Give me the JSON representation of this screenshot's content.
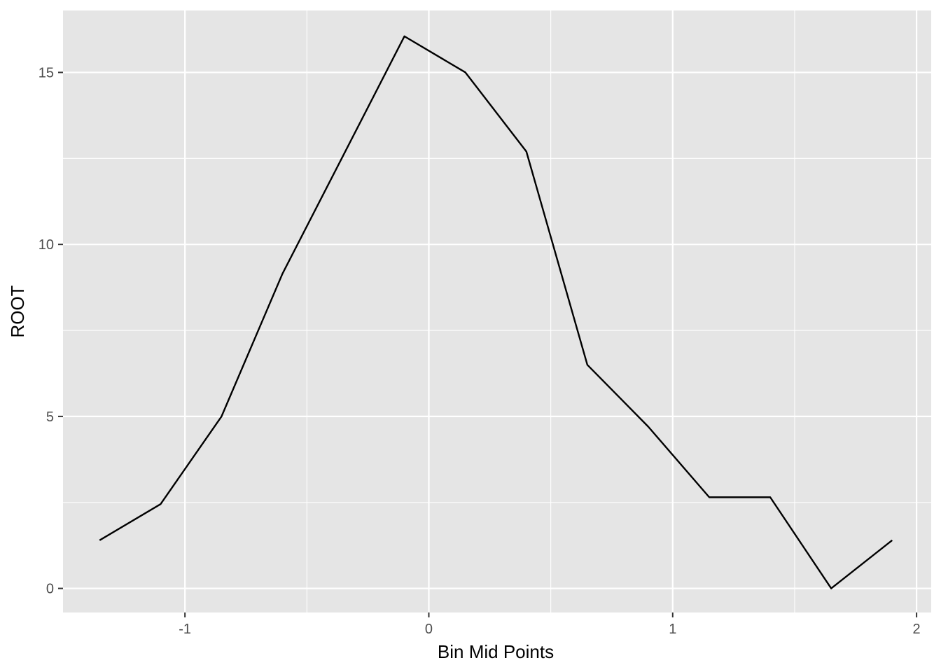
{
  "chart_data": {
    "type": "line",
    "title": "",
    "xlabel": "Bin Mid Points",
    "ylabel": "ROOT",
    "xlim": [
      -1.5,
      2.06
    ],
    "ylim": [
      -0.7,
      16.8
    ],
    "xticks": [
      -1,
      0,
      1,
      2
    ],
    "xtick_labels": [
      "-1",
      "0",
      "1",
      "2"
    ],
    "yticks": [
      0,
      5,
      10,
      15
    ],
    "ytick_labels": [
      "0",
      "5",
      "10",
      "15"
    ],
    "x_minor_gridlines": [
      -0.5,
      0.5,
      1.5
    ],
    "y_minor_gridlines": [
      2.5,
      7.5,
      12.5
    ],
    "grid": true,
    "legend": "none",
    "series": [
      {
        "x": [
          -1.35,
          -1.1,
          -0.85,
          -0.6,
          -0.35,
          -0.1,
          0.15,
          0.4,
          0.65,
          0.9,
          1.15,
          1.4,
          1.65,
          1.9
        ],
        "y": [
          1.4,
          2.45,
          5.0,
          9.15,
          12.6,
          16.05,
          15.0,
          12.7,
          6.5,
          4.7,
          2.65,
          2.65,
          0.0,
          1.4
        ],
        "color": "#000000"
      }
    ]
  },
  "style": {
    "panel_background": "#e5e5e5",
    "grid_color": "#ffffff",
    "tick_color": "#333333",
    "line_color": "#000000"
  }
}
